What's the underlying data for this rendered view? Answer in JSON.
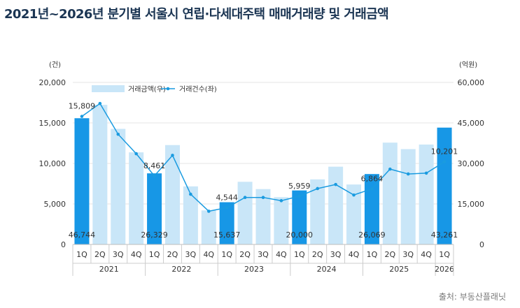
{
  "chart_data": {
    "type": "bar",
    "title": "2021년~2026년 분기별 서울시 연립·다세대주택 매매거래량 및 거래금액",
    "source": "출처: 부동산플래닛",
    "left_axis_unit": "(건)",
    "right_axis_unit": "(억원)",
    "left_ylim": [
      0,
      20000
    ],
    "left_ticks": [
      "0",
      "5,000",
      "10,000",
      "15,000",
      "20,000"
    ],
    "right_ylim": [
      0,
      60000
    ],
    "right_ticks": [
      "0",
      "15,000",
      "30,000",
      "45,000",
      "60,000"
    ],
    "categories": [
      "1Q",
      "2Q",
      "3Q",
      "4Q",
      "1Q",
      "2Q",
      "3Q",
      "4Q",
      "1Q",
      "2Q",
      "3Q",
      "4Q",
      "1Q",
      "2Q",
      "3Q",
      "4Q",
      "1Q",
      "2Q",
      "3Q",
      "4Q",
      "1Q"
    ],
    "years": [
      {
        "label": "2021",
        "quarters": 4
      },
      {
        "label": "2022",
        "quarters": 4
      },
      {
        "label": "2023",
        "quarters": 4
      },
      {
        "label": "2024",
        "quarters": 4
      },
      {
        "label": "2025",
        "quarters": 4
      },
      {
        "label": "2026",
        "quarters": 1
      }
    ],
    "grid": true,
    "legend_position": "top-left",
    "series": [
      {
        "name": "거래금액(우)",
        "type": "bar",
        "axis": "right",
        "values": [
          46744,
          51700,
          42800,
          34100,
          26329,
          36800,
          21500,
          12600,
          15637,
          23200,
          20500,
          17500,
          20000,
          24100,
          28800,
          22200,
          26069,
          37700,
          35300,
          37000,
          43261
        ],
        "highlight_indices": [
          0,
          4,
          8,
          12,
          16,
          20
        ],
        "highlight_labels": [
          "46,744",
          "26,329",
          "15,637",
          "20,000",
          "26,069",
          "43,261"
        ],
        "color": "#c9e6f8",
        "highlight_color": "#1797e6"
      },
      {
        "name": "거래건수(좌)",
        "type": "line",
        "axis": "left",
        "values": [
          15809,
          17400,
          13600,
          11200,
          8461,
          11000,
          6200,
          4100,
          4544,
          5800,
          5800,
          5400,
          5959,
          6900,
          7400,
          6100,
          6864,
          9300,
          8700,
          8800,
          10201
        ],
        "highlight_indices": [
          0,
          4,
          8,
          12,
          16,
          20
        ],
        "highlight_labels": [
          "15,809",
          "8,461",
          "4,544",
          "5,959",
          "6,864",
          "10,201"
        ],
        "color": "#1a9be0"
      }
    ]
  }
}
